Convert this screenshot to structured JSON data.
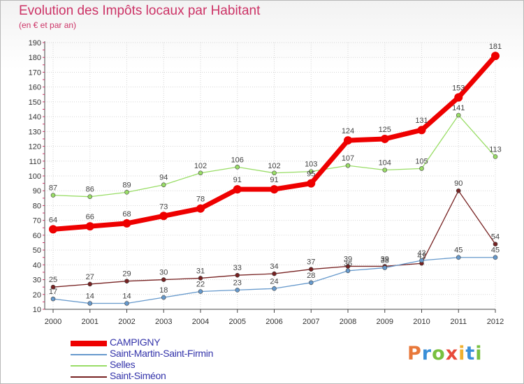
{
  "header": {
    "title": "Evolution des Impôts locaux par Habitant",
    "subtitle": "(en € et par an)"
  },
  "logo": {
    "text": "Proxiti",
    "colors": [
      "#e8783a",
      "#3a8fd8",
      "#78c040",
      "#e84a3a",
      "#f0b030",
      "#3a8fd8",
      "#78c040"
    ]
  },
  "chart_data": {
    "type": "line",
    "categories": [
      "2000",
      "2001",
      "2002",
      "2003",
      "2004",
      "2005",
      "2006",
      "2007",
      "2008",
      "2009",
      "2010",
      "2011",
      "2012"
    ],
    "ylim": [
      10,
      190
    ],
    "yticks": [
      10,
      20,
      30,
      40,
      50,
      60,
      70,
      80,
      90,
      100,
      110,
      120,
      130,
      140,
      150,
      160,
      170,
      180,
      190
    ],
    "grid": true,
    "legend_position": "bottom-left",
    "series": [
      {
        "name": "CAMPIGNY",
        "color": "#ee0000",
        "values": [
          64,
          66,
          68,
          73,
          78,
          91,
          91,
          95,
          124,
          125,
          131,
          153,
          181
        ],
        "labels": [
          "64",
          "66",
          "68",
          "73",
          "78",
          "91",
          "91",
          "95",
          "124",
          "125",
          "131",
          "153",
          "181"
        ]
      },
      {
        "name": "Saint-Martin-Saint-Firmin",
        "color": "#6699cc",
        "values": [
          17,
          14,
          14,
          18,
          22,
          23,
          24,
          28,
          36,
          38,
          43,
          45,
          45
        ],
        "labels": [
          "17",
          "14",
          "14",
          "18",
          "22",
          "23",
          "24",
          "28",
          "36",
          "38",
          "43",
          "45",
          "45"
        ]
      },
      {
        "name": "Selles",
        "color": "#99dd66",
        "values": [
          87,
          86,
          89,
          94,
          102,
          106,
          102,
          103,
          107,
          104,
          105,
          141,
          113
        ],
        "labels": [
          "87",
          "86",
          "89",
          "94",
          "102",
          "106",
          "102",
          "103",
          "107",
          "104",
          "105",
          "141",
          "113"
        ]
      },
      {
        "name": "Saint-Siméon",
        "color": "#772222",
        "values": [
          25,
          27,
          29,
          30,
          31,
          33,
          34,
          37,
          39,
          39,
          41,
          90,
          54
        ],
        "labels": [
          "25",
          "27",
          "29",
          "30",
          "31",
          "33",
          "34",
          "37",
          "39",
          "39",
          "41",
          "90",
          "54"
        ]
      }
    ]
  }
}
